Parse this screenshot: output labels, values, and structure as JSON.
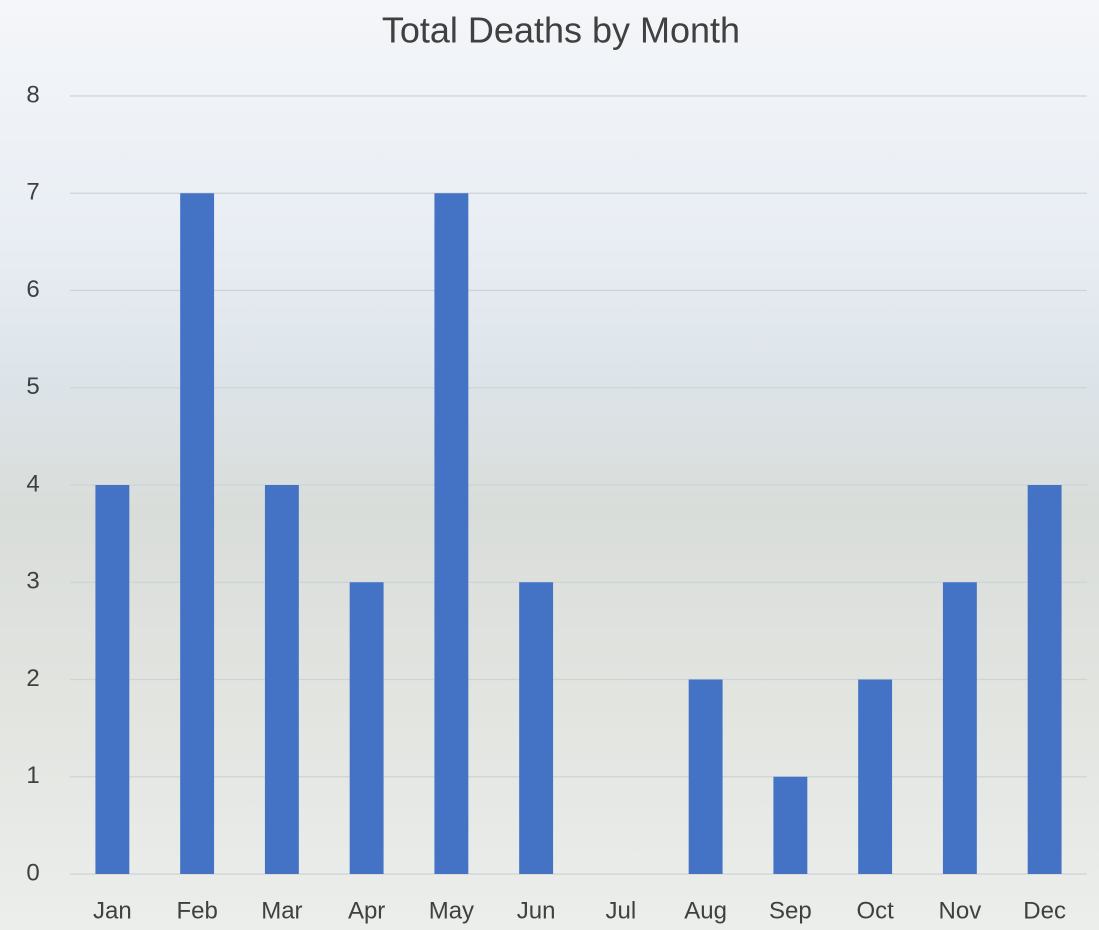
{
  "chart_data": {
    "type": "bar",
    "title": "Total Deaths by Month",
    "categories": [
      "Jan",
      "Feb",
      "Mar",
      "Apr",
      "May",
      "Jun",
      "Jul",
      "Aug",
      "Sep",
      "Oct",
      "Nov",
      "Dec"
    ],
    "values": [
      4,
      7,
      4,
      3,
      7,
      3,
      0,
      2,
      1,
      2,
      3,
      4
    ],
    "color": "#4472c4",
    "ylim": [
      0,
      8
    ],
    "yticks": [
      0,
      1,
      2,
      3,
      4,
      5,
      6,
      7,
      8
    ],
    "grid": true
  }
}
